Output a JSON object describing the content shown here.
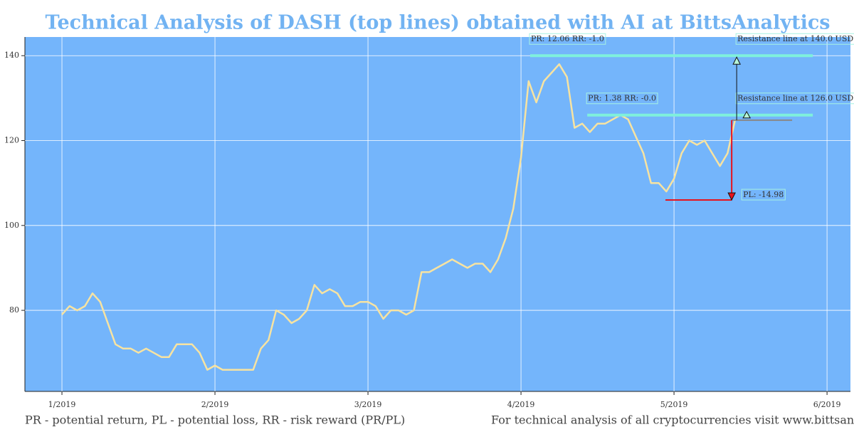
{
  "chart_data": {
    "type": "line",
    "title": "Technical Analysis of DASH (top lines) obtained with AI at BittsAnalytics",
    "x": [
      1,
      1.05,
      1.1,
      1.15,
      1.2,
      1.25,
      1.3,
      1.35,
      1.4,
      1.45,
      1.5,
      1.55,
      1.6,
      1.65,
      1.7,
      1.75,
      1.8,
      1.85,
      1.9,
      1.95,
      2,
      2.05,
      2.1,
      2.15,
      2.2,
      2.25,
      2.3,
      2.35,
      2.4,
      2.45,
      2.5,
      2.55,
      2.6,
      2.65,
      2.7,
      2.75,
      2.8,
      2.85,
      2.9,
      2.95,
      3,
      3.05,
      3.1,
      3.15,
      3.2,
      3.25,
      3.3,
      3.35,
      3.4,
      3.45,
      3.5,
      3.55,
      3.6,
      3.65,
      3.7,
      3.75,
      3.8,
      3.85,
      3.9,
      3.95,
      4,
      4.05,
      4.1,
      4.15,
      4.2,
      4.25,
      4.3,
      4.35,
      4.4,
      4.45,
      4.5,
      4.55,
      4.6,
      4.65,
      4.7,
      4.75,
      4.8,
      4.85,
      4.9,
      4.95,
      5,
      5.05,
      5.1,
      5.15,
      5.2,
      5.25,
      5.3,
      5.35,
      5.4
    ],
    "values": [
      79,
      81,
      80,
      81,
      84,
      82,
      77,
      72,
      71,
      71,
      70,
      71,
      70,
      69,
      69,
      72,
      72,
      72,
      70,
      66,
      67,
      66,
      66,
      66,
      66,
      66,
      71,
      73,
      80,
      79,
      77,
      78,
      80,
      86,
      84,
      85,
      84,
      81,
      81,
      82,
      82,
      81,
      78,
      80,
      80,
      79,
      80,
      89,
      89,
      90,
      91,
      92,
      91,
      90,
      91,
      91,
      89,
      92,
      97,
      104,
      116,
      134,
      129,
      134,
      136,
      138,
      135,
      123,
      124,
      122,
      124,
      124,
      125,
      126,
      125,
      121,
      117,
      110,
      110,
      108,
      111,
      117,
      120,
      119,
      120,
      117,
      114,
      117,
      125
    ],
    "color": "#f7e3a1",
    "xlim": [
      0.758,
      6.153
    ],
    "ylim": [
      60.9,
      144.4
    ],
    "xticks": [
      {
        "value": 1,
        "label": "1/2019"
      },
      {
        "value": 2,
        "label": "2/2019"
      },
      {
        "value": 3,
        "label": "3/2019"
      },
      {
        "value": 4,
        "label": "4/2019"
      },
      {
        "value": 5,
        "label": "5/2019"
      },
      {
        "value": 6,
        "label": "6/2019"
      }
    ],
    "yticks": [
      80,
      100,
      120,
      140
    ],
    "grid": true,
    "resistance_lines": [
      {
        "value": 140,
        "xlim": [
          4.06,
          5.907
        ],
        "label": "Resistance line at 140.0 USD",
        "note": "PR: 12.06 RR: -1.0",
        "color": "#7ff0dc"
      },
      {
        "value": 126,
        "xlim": [
          4.433,
          5.907
        ],
        "label": "Resistance line at 126.0 USD",
        "note": "PR: 1.38 RR: -0.0",
        "color": "#7ff0dc"
      }
    ],
    "support_line": {
      "value": 106,
      "xlim": [
        4.944,
        5.377
      ],
      "label": "PL: -14.98",
      "color": "#e8121c"
    },
    "current_price": {
      "value": 124.8,
      "xlim": [
        5.377,
        5.772
      ],
      "color": "#888888"
    },
    "footer_left": "PR - potential return, PL - potential loss, RR - risk reward (PR/PL)",
    "footer_right": "For technical analysis of all cryptocurrencies visit www.bittsan"
  }
}
